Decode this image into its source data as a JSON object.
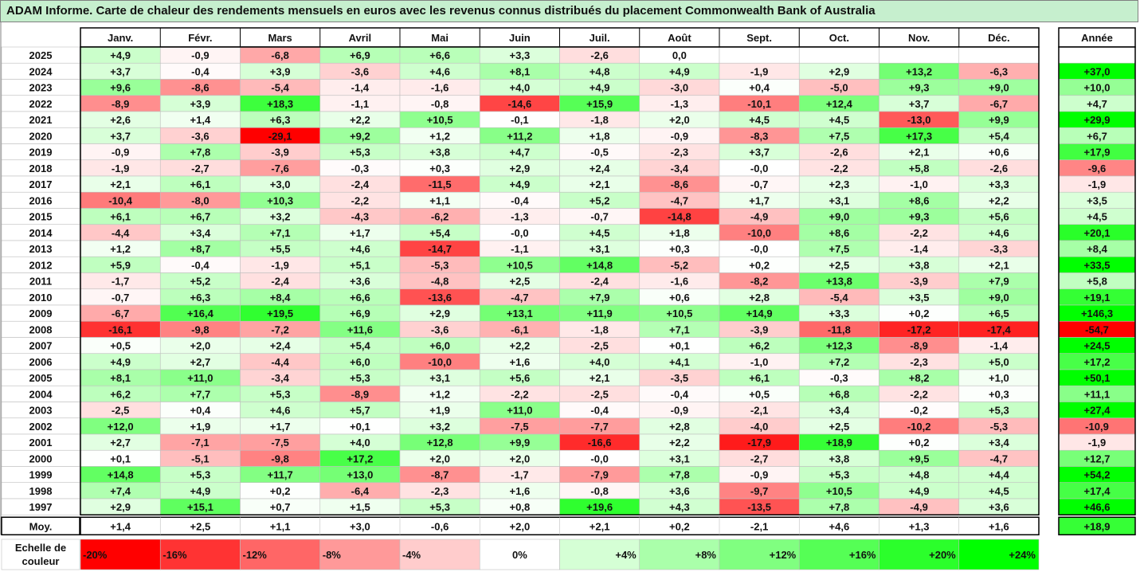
{
  "title": "ADAM Informe. Carte de chaleur des rendements mensuels en euros avec les revenus connus distribués du placement Commonwealth Bank of Australia",
  "chart_data": {
    "type": "heatmap",
    "columns": [
      "Janv.",
      "Févr.",
      "Mars",
      "Avril",
      "Mai",
      "Juin",
      "Juil.",
      "Août",
      "Sept.",
      "Oct.",
      "Nov.",
      "Déc."
    ],
    "year_column_label": "Année",
    "years": [
      "2025",
      "2024",
      "2023",
      "2022",
      "2021",
      "2020",
      "2019",
      "2018",
      "2017",
      "2016",
      "2015",
      "2014",
      "2013",
      "2012",
      "2011",
      "2010",
      "2009",
      "2008",
      "2007",
      "2006",
      "2005",
      "2004",
      "2003",
      "2002",
      "2001",
      "2000",
      "1999",
      "1998",
      "1997"
    ],
    "values": [
      [
        "+4,9",
        "-0,9",
        "-6,8",
        "+6,9",
        "+6,6",
        "+3,3",
        "-2,6",
        "0,0",
        "",
        "",
        "",
        ""
      ],
      [
        "+3,7",
        "-0,4",
        "+3,9",
        "-3,6",
        "+4,6",
        "+8,1",
        "+4,8",
        "+4,9",
        "-1,9",
        "+2,9",
        "+13,2",
        "-6,3"
      ],
      [
        "+9,6",
        "-8,6",
        "-5,4",
        "-1,4",
        "-1,6",
        "+4,0",
        "+4,9",
        "-3,0",
        "+0,4",
        "-5,0",
        "+9,3",
        "+9,0"
      ],
      [
        "-8,9",
        "+3,9",
        "+18,3",
        "-1,1",
        "-0,8",
        "-14,6",
        "+15,9",
        "-1,3",
        "-10,1",
        "+12,4",
        "+3,7",
        "-6,7"
      ],
      [
        "+2,6",
        "+1,4",
        "+6,3",
        "+2,2",
        "+10,5",
        "-0,1",
        "-1,8",
        "+2,0",
        "+4,5",
        "+4,5",
        "-13,0",
        "+9,9"
      ],
      [
        "+3,7",
        "-3,6",
        "-29,1",
        "+9,2",
        "+1,2",
        "+11,2",
        "+1,8",
        "-0,9",
        "-8,3",
        "+7,5",
        "+17,3",
        "+5,4"
      ],
      [
        "-0,9",
        "+7,8",
        "-3,9",
        "+5,3",
        "+3,8",
        "+4,7",
        "-0,5",
        "-2,3",
        "+3,7",
        "-2,6",
        "+2,1",
        "+0,6"
      ],
      [
        "-1,9",
        "-2,7",
        "-7,6",
        "-0,3",
        "+0,3",
        "+2,9",
        "+2,4",
        "-3,4",
        "-0,0",
        "-2,2",
        "+5,8",
        "-2,6"
      ],
      [
        "+2,1",
        "+6,1",
        "+3,0",
        "-2,4",
        "-11,5",
        "+4,9",
        "+2,1",
        "-8,6",
        "-0,7",
        "+2,3",
        "-1,0",
        "+3,3"
      ],
      [
        "-10,4",
        "-8,0",
        "+10,3",
        "-2,2",
        "+1,1",
        "-0,4",
        "+5,2",
        "-4,7",
        "+1,7",
        "+3,1",
        "+8,6",
        "+2,2"
      ],
      [
        "+6,1",
        "+6,7",
        "+3,2",
        "-4,3",
        "-6,2",
        "-1,3",
        "-0,7",
        "-14,8",
        "-4,9",
        "+9,0",
        "+9,3",
        "+5,6"
      ],
      [
        "-4,4",
        "+3,4",
        "+7,1",
        "+1,7",
        "+5,4",
        "-0,0",
        "+4,5",
        "+1,8",
        "-10,0",
        "+8,6",
        "-2,2",
        "+4,6"
      ],
      [
        "+1,2",
        "+8,7",
        "+5,5",
        "+4,6",
        "-14,7",
        "-1,1",
        "+3,1",
        "+0,3",
        "-0,0",
        "+7,5",
        "-1,4",
        "-3,3"
      ],
      [
        "+5,9",
        "-0,4",
        "-1,9",
        "+5,1",
        "-5,3",
        "+10,5",
        "+14,8",
        "-5,2",
        "+0,2",
        "+2,5",
        "+3,8",
        "+2,1"
      ],
      [
        "-1,7",
        "+5,2",
        "-2,4",
        "+3,6",
        "-4,8",
        "+2,5",
        "-2,4",
        "-1,6",
        "-8,2",
        "+13,8",
        "-3,9",
        "+7,9"
      ],
      [
        "-0,7",
        "+6,3",
        "+8,4",
        "+6,6",
        "-13,6",
        "-4,7",
        "+7,9",
        "+0,6",
        "+2,8",
        "-5,4",
        "+3,5",
        "+9,0"
      ],
      [
        "-6,7",
        "+16,4",
        "+19,5",
        "+6,9",
        "+2,9",
        "+13,1",
        "+11,9",
        "+10,5",
        "+14,9",
        "+3,3",
        "+0,2",
        "+6,5"
      ],
      [
        "-16,1",
        "-9,8",
        "-7,2",
        "+11,6",
        "-3,6",
        "-6,1",
        "-1,8",
        "+7,1",
        "-3,9",
        "-11,8",
        "-17,2",
        "-17,4"
      ],
      [
        "+0,5",
        "+2,0",
        "+2,4",
        "+5,4",
        "+6,0",
        "+2,2",
        "-2,5",
        "+0,1",
        "+6,2",
        "+12,3",
        "-8,9",
        "-1,4"
      ],
      [
        "+4,9",
        "+2,7",
        "-4,4",
        "+6,0",
        "-10,0",
        "+1,6",
        "+4,0",
        "+4,1",
        "-1,0",
        "+7,2",
        "-2,3",
        "+5,0"
      ],
      [
        "+8,1",
        "+11,0",
        "-3,4",
        "+5,3",
        "+3,1",
        "+5,6",
        "+2,1",
        "-3,5",
        "+6,1",
        "-0,3",
        "+8,2",
        "+1,0"
      ],
      [
        "+6,2",
        "+7,7",
        "+5,3",
        "-8,9",
        "+1,2",
        "-2,2",
        "-2,5",
        "-0,4",
        "+0,5",
        "+6,8",
        "-2,2",
        "+0,3"
      ],
      [
        "-2,5",
        "+0,4",
        "+4,6",
        "+5,7",
        "+1,9",
        "+11,0",
        "-0,4",
        "-0,9",
        "-2,1",
        "+3,4",
        "-0,2",
        "+5,3"
      ],
      [
        "+12,0",
        "+1,9",
        "+1,7",
        "+0,1",
        "+3,2",
        "-7,5",
        "-7,7",
        "+2,8",
        "-4,0",
        "+2,5",
        "-10,2",
        "-5,3"
      ],
      [
        "+2,7",
        "-7,1",
        "-7,5",
        "+4,0",
        "+12,8",
        "+9,9",
        "-16,6",
        "+2,2",
        "-17,9",
        "+18,9",
        "+0,2",
        "+3,4"
      ],
      [
        "+0,1",
        "-5,1",
        "-9,8",
        "+17,2",
        "+2,0",
        "+2,0",
        "-0,0",
        "+3,1",
        "-2,7",
        "+3,8",
        "+9,5",
        "-4,7"
      ],
      [
        "+14,8",
        "+5,3",
        "+11,7",
        "+13,0",
        "-8,7",
        "-1,7",
        "-7,9",
        "+7,8",
        "-0,9",
        "+5,3",
        "+4,8",
        "+4,4"
      ],
      [
        "+7,4",
        "+4,9",
        "+0,2",
        "-6,4",
        "-2,3",
        "+1,6",
        "-0,8",
        "+3,6",
        "-9,7",
        "+10,5",
        "+4,9",
        "+4,5"
      ],
      [
        "+2,9",
        "+15,1",
        "+0,7",
        "+1,5",
        "+5,3",
        "+0,8",
        "+19,6",
        "+4,3",
        "-13,5",
        "+7,8",
        "-4,9",
        "+3,6"
      ]
    ],
    "annual": [
      "",
      "+37,0",
      "+10,0",
      "+4,7",
      "+29,9",
      "+6,7",
      "+17,9",
      "-9,6",
      "-1,9",
      "+3,5",
      "+4,5",
      "+20,1",
      "+8,4",
      "+33,5",
      "+5,8",
      "+19,1",
      "+146,3",
      "-54,7",
      "+24,5",
      "+17,2",
      "+50,1",
      "+11,1",
      "+27,4",
      "-10,9",
      "-1,9",
      "+12,7",
      "+54,2",
      "+17,4",
      "+46,6"
    ],
    "average_label": "Moy.",
    "averages": [
      "+1,4",
      "+2,5",
      "+1,1",
      "+3,0",
      "-0,6",
      "+2,0",
      "+2,1",
      "+0,2",
      "-2,1",
      "+4,6",
      "+1,3",
      "+1,6"
    ],
    "average_annual": "+18,9",
    "scale_label": [
      "Echelle de",
      "couleur"
    ],
    "scale": [
      {
        "label": "-20%",
        "value": -20
      },
      {
        "label": "-16%",
        "value": -16
      },
      {
        "label": "-12%",
        "value": -12
      },
      {
        "label": "-8%",
        "value": -8
      },
      {
        "label": "-4%",
        "value": -4
      },
      {
        "label": "0%",
        "value": 0
      },
      {
        "label": "+4%",
        "value": 4
      },
      {
        "label": "+8%",
        "value": 8
      },
      {
        "label": "+12%",
        "value": 12
      },
      {
        "label": "+16%",
        "value": 16
      },
      {
        "label": "+20%",
        "value": 20
      },
      {
        "label": "+24%",
        "value": 24
      }
    ],
    "colors": {
      "negative": "#ff0000",
      "neutral": "#ffffff",
      "positive": "#00ff00"
    },
    "color_range": [
      -20,
      24
    ]
  }
}
